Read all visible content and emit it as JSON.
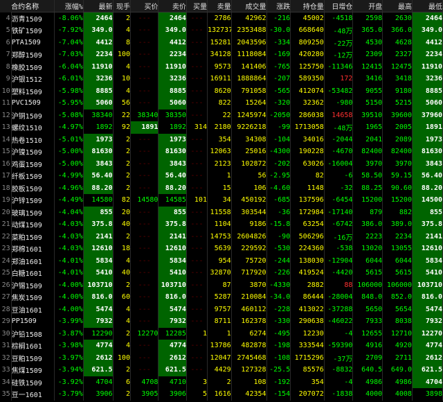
{
  "columns": [
    "合约名称",
    "涨幅%",
    "最新",
    "现手",
    "买价",
    "卖价",
    "买量",
    "卖量",
    "成交量",
    "涨跌",
    "持仓量",
    "日增仓",
    "开盘",
    "最高",
    "最低"
  ],
  "rows": [
    {
      "i": 4,
      "nm": "沥青1509",
      "chg": "-8.06%",
      "last": "2464",
      "hand": "2",
      "bid": "---",
      "ask": "2464",
      "bv": "---",
      "sv": "2786",
      "vol": "42962",
      "ud": "-216",
      "oi": "45002",
      "doi": "-4518",
      "open": "2598",
      "high": "2630",
      "low": "2464",
      "hl_last": 1,
      "hl_ask": 1,
      "hl_low": 1
    },
    {
      "i": 5,
      "nm": "铁矿1509",
      "chg": "-7.92%",
      "last": "349.0",
      "hand": "4",
      "bid": "---",
      "ask": "349.0",
      "bv": "---",
      "sv": "132737",
      "vol": "2353488",
      "ud": "-30.0",
      "oi": "668640",
      "doi": "-48万",
      "open": "365.0",
      "high": "366.0",
      "low": "349.0",
      "hl_last": 1,
      "hl_ask": 1,
      "hl_low": 1
    },
    {
      "i": 6,
      "nm": "PTA1509",
      "chg": "-7.04%",
      "last": "4412",
      "hand": "8",
      "bid": "---",
      "ask": "4412",
      "bv": "---",
      "sv": "15281",
      "vol": "2043596",
      "ud": "-334",
      "oi": "809250",
      "doi": "-22万",
      "open": "4530",
      "high": "4628",
      "low": "4412",
      "hl_last": 1,
      "hl_ask": 1,
      "hl_low": 1
    },
    {
      "i": 7,
      "nm": "郑醇1509",
      "chg": "-7.03%",
      "last": "2234",
      "hand": "100",
      "bid": "---",
      "ask": "2234",
      "bv": "---",
      "sv": "34128",
      "vol": "1118084",
      "ud": "-169",
      "oi": "420280",
      "doi": "-12万",
      "open": "2309",
      "high": "2327",
      "low": "2234",
      "hl_last": 1,
      "hl_ask": 1,
      "hl_low": 1
    },
    {
      "i": 8,
      "nm": "橡胶1509",
      "chg": "-6.04%",
      "last": "11910",
      "hand": "4",
      "bid": "---",
      "ask": "11910",
      "bv": "---",
      "sv": "9573",
      "vol": "141406",
      "ud": "-765",
      "oi": "125750",
      "doi": "-11346",
      "open": "12415",
      "high": "12475",
      "low": "11910",
      "hl_last": 1,
      "hl_ask": 1,
      "hl_low": 1
    },
    {
      "i": 9,
      "nm": "沪银1512",
      "chg": "-6.01%",
      "last": "3236",
      "hand": "10",
      "bid": "---",
      "ask": "3236",
      "bv": "---",
      "sv": "16911",
      "vol": "1888864",
      "ud": "-207",
      "oi": "589350",
      "doi": "172",
      "open": "3416",
      "high": "3418",
      "low": "3236",
      "doi_color": "red",
      "hl_last": 1,
      "hl_ask": 1,
      "hl_low": 1
    },
    {
      "i": 10,
      "nm": "塑料1509",
      "chg": "-5.98%",
      "last": "8885",
      "hand": "4",
      "bid": "---",
      "ask": "8885",
      "bv": "---",
      "sv": "8620",
      "vol": "791058",
      "ud": "-565",
      "oi": "412074",
      "doi": "-53482",
      "open": "9055",
      "high": "9180",
      "low": "8885",
      "hl_last": 1,
      "hl_ask": 1,
      "hl_low": 1
    },
    {
      "i": 11,
      "nm": "PVC1509",
      "chg": "-5.95%",
      "last": "5060",
      "hand": "56",
      "bid": "---",
      "ask": "5060",
      "bv": "---",
      "sv": "822",
      "vol": "15264",
      "ud": "-320",
      "oi": "32362",
      "doi": "-980",
      "open": "5150",
      "high": "5215",
      "low": "5060",
      "hl_last": 1,
      "hl_ask": 1,
      "hl_low": 1
    },
    {
      "i": 12,
      "nm": "沪铜1509",
      "chg": "-5.08%",
      "last": "38340",
      "hand": "22",
      "bid": "38340",
      "ask": "38350",
      "bv": "---",
      "sv": "22",
      "vol": "1245974",
      "ud": "-2050",
      "oi": "286038",
      "doi": "14658",
      "open": "39510",
      "high": "39600",
      "low": "37960",
      "doi_color": "red",
      "hl_low": 1
    },
    {
      "i": 13,
      "nm": "螺纹1510",
      "chg": "-4.97%",
      "last": "1892",
      "hand": "92",
      "bid": "1891",
      "ask": "1892",
      "bv": "314",
      "sv": "2180",
      "vol": "9226218",
      "ud": "-99",
      "oi": "1713058",
      "doi": "-48万",
      "open": "1965",
      "high": "2005",
      "low": "1891",
      "hl_bid": 1,
      "hl_low": 1
    },
    {
      "i": 14,
      "nm": "热卷1510",
      "chg": "-5.01%",
      "last": "1973",
      "hand": "2",
      "bid": "---",
      "ask": "1973",
      "bv": "---",
      "sv": "354",
      "vol": "34308",
      "ud": "-104",
      "oi": "34016",
      "doi": "-2044",
      "open": "2041",
      "high": "2089",
      "low": "1973",
      "hl_last": 1,
      "hl_ask": 1,
      "hl_low": 1
    },
    {
      "i": 15,
      "nm": "沪镍1509",
      "chg": "-5.00%",
      "last": "81630",
      "hand": "2",
      "bid": "---",
      "ask": "81630",
      "bv": "---",
      "sv": "12063",
      "vol": "25016",
      "ud": "-4300",
      "oi": "190228",
      "doi": "-4670",
      "open": "82400",
      "high": "82400",
      "low": "81630",
      "hl_last": 1,
      "hl_ask": 1,
      "hl_low": 1
    },
    {
      "i": 16,
      "nm": "鸡蛋1509",
      "chg": "-5.00%",
      "last": "3843",
      "hand": "2",
      "bid": "---",
      "ask": "3843",
      "bv": "---",
      "sv": "2123",
      "vol": "102872",
      "ud": "-202",
      "oi": "63026",
      "doi": "-16004",
      "open": "3970",
      "high": "3970",
      "low": "3843",
      "hl_last": 1,
      "hl_ask": 1,
      "hl_low": 1
    },
    {
      "i": 17,
      "nm": "纤板1509",
      "chg": "-4.99%",
      "last": "56.40",
      "hand": "2",
      "bid": "---",
      "ask": "56.40",
      "bv": "---",
      "sv": "1",
      "vol": "56",
      "ud": "-2.95",
      "oi": "82",
      "doi": "-6",
      "open": "58.50",
      "high": "59.15",
      "low": "56.40",
      "hl_last": 1,
      "hl_ask": 1,
      "hl_low": 1
    },
    {
      "i": 18,
      "nm": "胶板1509",
      "chg": "-4.96%",
      "last": "88.20",
      "hand": "2",
      "bid": "---",
      "ask": "88.20",
      "bv": "---",
      "sv": "15",
      "vol": "106",
      "ud": "-4.60",
      "oi": "1148",
      "doi": "-32",
      "open": "88.25",
      "high": "90.60",
      "low": "88.20",
      "hl_last": 1,
      "hl_ask": 1,
      "hl_low": 1
    },
    {
      "i": 19,
      "nm": "沪锌1509",
      "chg": "-4.49%",
      "last": "14580",
      "hand": "82",
      "bid": "14580",
      "ask": "14585",
      "bv": "101",
      "sv": "34",
      "vol": "450192",
      "ud": "-685",
      "oi": "137596",
      "doi": "-6454",
      "open": "15200",
      "high": "15200",
      "low": "14500",
      "hl_low": 1
    },
    {
      "i": 20,
      "nm": "玻璃1509",
      "chg": "-4.04%",
      "last": "855",
      "hand": "20",
      "bid": "---",
      "ask": "855",
      "bv": "---",
      "sv": "11558",
      "vol": "303544",
      "ud": "-36",
      "oi": "172984",
      "doi": "-17140",
      "open": "879",
      "high": "882",
      "low": "855",
      "hl_last": 1,
      "hl_ask": 1,
      "hl_low": 1
    },
    {
      "i": 21,
      "nm": "动煤1509",
      "chg": "-4.03%",
      "last": "375.8",
      "hand": "40",
      "bid": "---",
      "ask": "375.8",
      "bv": "---",
      "sv": "1104",
      "vol": "9186",
      "ud": "-15.8",
      "oi": "63254",
      "doi": "-6742",
      "open": "386.0",
      "high": "389.0",
      "low": "375.8",
      "hl_last": 1,
      "hl_ask": 1,
      "hl_low": 1
    },
    {
      "i": 22,
      "nm": "菜粕1509",
      "chg": "-4.03%",
      "last": "2141",
      "hand": "2",
      "bid": "---",
      "ask": "2141",
      "bv": "---",
      "sv": "14753",
      "vol": "2604826",
      "ud": "-90",
      "oi": "506296",
      "doi": "-16万",
      "open": "2223",
      "high": "2234",
      "low": "2141",
      "hl_last": 1,
      "hl_ask": 1,
      "hl_low": 1
    },
    {
      "i": 23,
      "nm": "郑棉1601",
      "chg": "-4.03%",
      "last": "12610",
      "hand": "18",
      "bid": "---",
      "ask": "12610",
      "bv": "---",
      "sv": "5639",
      "vol": "229592",
      "ud": "-530",
      "oi": "224360",
      "doi": "-538",
      "open": "13020",
      "high": "13055",
      "low": "12610",
      "hl_last": 1,
      "hl_ask": 1,
      "hl_low": 1
    },
    {
      "i": 24,
      "nm": "郑油1601",
      "chg": "-4.01%",
      "last": "5834",
      "hand": "4",
      "bid": "---",
      "ask": "5834",
      "bv": "---",
      "sv": "954",
      "vol": "75720",
      "ud": "-244",
      "oi": "138030",
      "doi": "-12904",
      "open": "6044",
      "high": "6044",
      "low": "5834",
      "hl_last": 1,
      "hl_ask": 1,
      "hl_low": 1
    },
    {
      "i": 25,
      "nm": "白糖1601",
      "chg": "-4.01%",
      "last": "5410",
      "hand": "40",
      "bid": "---",
      "ask": "5410",
      "bv": "---",
      "sv": "32870",
      "vol": "717920",
      "ud": "-226",
      "oi": "419524",
      "doi": "-4420",
      "open": "5615",
      "high": "5615",
      "low": "5410",
      "hl_last": 1,
      "hl_ask": 1,
      "hl_low": 1
    },
    {
      "i": 26,
      "nm": "沪锡1509",
      "chg": "-4.00%",
      "last": "103710",
      "hand": "2",
      "bid": "---",
      "ask": "103710",
      "bv": "---",
      "sv": "87",
      "vol": "3870",
      "ud": "-4330",
      "oi": "2882",
      "doi": "88",
      "open": "106000",
      "high": "106000",
      "low": "103710",
      "doi_color": "red",
      "hl_last": 1,
      "hl_ask": 1,
      "hl_low": 1
    },
    {
      "i": 27,
      "nm": "焦炭1509",
      "chg": "-4.00%",
      "last": "816.0",
      "hand": "60",
      "bid": "---",
      "ask": "816.0",
      "bv": "---",
      "sv": "5287",
      "vol": "210084",
      "ud": "-34.0",
      "oi": "86444",
      "doi": "-28004",
      "open": "848.0",
      "high": "852.0",
      "low": "816.0",
      "hl_last": 1,
      "hl_ask": 1,
      "hl_low": 1
    },
    {
      "i": 28,
      "nm": "豆油1601",
      "chg": "-4.00%",
      "last": "5474",
      "hand": "4",
      "bid": "---",
      "ask": "5474",
      "bv": "---",
      "sv": "9757",
      "vol": "460112",
      "ud": "-228",
      "oi": "413022",
      "doi": "-37288",
      "open": "5650",
      "high": "5654",
      "low": "5474",
      "hl_last": 1,
      "hl_ask": 1,
      "hl_low": 1
    },
    {
      "i": 29,
      "nm": "PP1509",
      "chg": "-3.99%",
      "last": "7932",
      "hand": "4",
      "bid": "---",
      "ask": "7932",
      "bv": "---",
      "sv": "8711",
      "vol": "162378",
      "ud": "-330",
      "oi": "290638",
      "doi": "-46022",
      "open": "7933",
      "high": "8038",
      "low": "7932",
      "hl_last": 1,
      "hl_ask": 1,
      "hl_low": 1
    },
    {
      "i": 30,
      "nm": "沪铅1508",
      "chg": "-3.87%",
      "last": "12290",
      "hand": "2",
      "bid": "12270",
      "ask": "12285",
      "bv": "1",
      "sv": "1",
      "vol": "6274",
      "ud": "-495",
      "oi": "12230",
      "doi": "-4",
      "open": "12655",
      "high": "12710",
      "low": "12270",
      "hl_low": 1
    },
    {
      "i": 31,
      "nm": "棕榈1601",
      "chg": "-3.98%",
      "last": "4774",
      "hand": "4",
      "bid": "---",
      "ask": "4774",
      "bv": "---",
      "sv": "13786",
      "vol": "482878",
      "ud": "-198",
      "oi": "333544",
      "doi": "-59390",
      "open": "4916",
      "high": "4920",
      "low": "4774",
      "hl_last": 1,
      "hl_ask": 1,
      "hl_low": 1
    },
    {
      "i": 32,
      "nm": "豆粕1509",
      "chg": "-3.97%",
      "last": "2612",
      "hand": "100",
      "bid": "---",
      "ask": "2612",
      "bv": "---",
      "sv": "12047",
      "vol": "2745468",
      "ud": "-108",
      "oi": "1715296",
      "doi": "-37万",
      "open": "2709",
      "high": "2711",
      "low": "2612",
      "hl_last": 1,
      "hl_ask": 1,
      "hl_low": 1
    },
    {
      "i": 33,
      "nm": "焦煤1509",
      "chg": "-3.94%",
      "last": "621.5",
      "hand": "2",
      "bid": "---",
      "ask": "621.5",
      "bv": "---",
      "sv": "4429",
      "vol": "127328",
      "ud": "-25.5",
      "oi": "85576",
      "doi": "-8832",
      "open": "640.5",
      "high": "649.0",
      "low": "621.5",
      "hl_last": 1,
      "hl_ask": 1,
      "hl_low": 1
    },
    {
      "i": 34,
      "nm": "硅铁1509",
      "chg": "-3.92%",
      "last": "4704",
      "hand": "6",
      "bid": "4708",
      "ask": "4710",
      "bv": "3",
      "sv": "2",
      "vol": "108",
      "ud": "-192",
      "oi": "354",
      "doi": "-4",
      "open": "4986",
      "high": "4986",
      "low": "4704",
      "hl_low": 1
    },
    {
      "i": 35,
      "nm": "豆一1601",
      "chg": "-3.79%",
      "last": "3906",
      "hand": "2",
      "bid": "3905",
      "ask": "3906",
      "bv": "5",
      "sv": "1616",
      "vol": "42354",
      "ud": "-154",
      "oi": "207072",
      "doi": "-1838",
      "open": "4000",
      "high": "4008",
      "low": "3898"
    }
  ]
}
